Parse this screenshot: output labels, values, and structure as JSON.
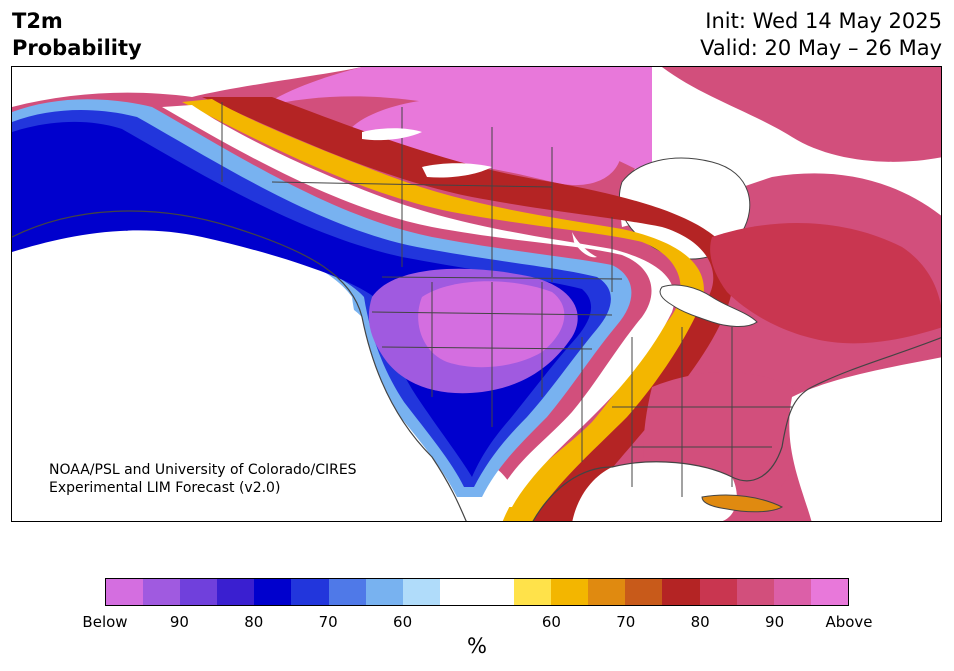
{
  "title": {
    "left_line1": "T2m",
    "left_line2": "Probability",
    "right_line1": "Init: Wed 14 May 2025",
    "right_line2": "Valid: 20 May – 26 May"
  },
  "credit": {
    "line1": "NOAA/PSL and University of Colorado/CIRES",
    "line2": "Experimental LIM Forecast (v2.0)"
  },
  "colorbar": {
    "colors": [
      "#d46ee0",
      "#a05ae0",
      "#7040dc",
      "#3a1fd0",
      "#0000cd",
      "#2236dc",
      "#4f79e8",
      "#78b2f0",
      "#b0dcfa",
      "#ffffff",
      "#ffffff",
      "#ffe24a",
      "#f3b600",
      "#e08a10",
      "#c85a1a",
      "#b42424",
      "#c93650",
      "#d24f7c",
      "#dc5fa8",
      "#e878da"
    ],
    "tick_labels": [
      "Below",
      "90",
      "80",
      "70",
      "60",
      "60",
      "70",
      "80",
      "90",
      "Above"
    ],
    "unit": "%"
  },
  "legend_meaning": {
    "below": "Below",
    "above": "Above"
  },
  "map_colors": {
    "above_strong": "#e878da",
    "above_high": "#d24f7c",
    "above_mid": "#b42424",
    "above_low": "#f3b600",
    "near_normal": "#ffffff",
    "below_low": "#78b2f0",
    "below_mid": "#2236dc",
    "below_high": "#0000cd",
    "below_strong": "#a05ae0",
    "border": "#444444"
  }
}
